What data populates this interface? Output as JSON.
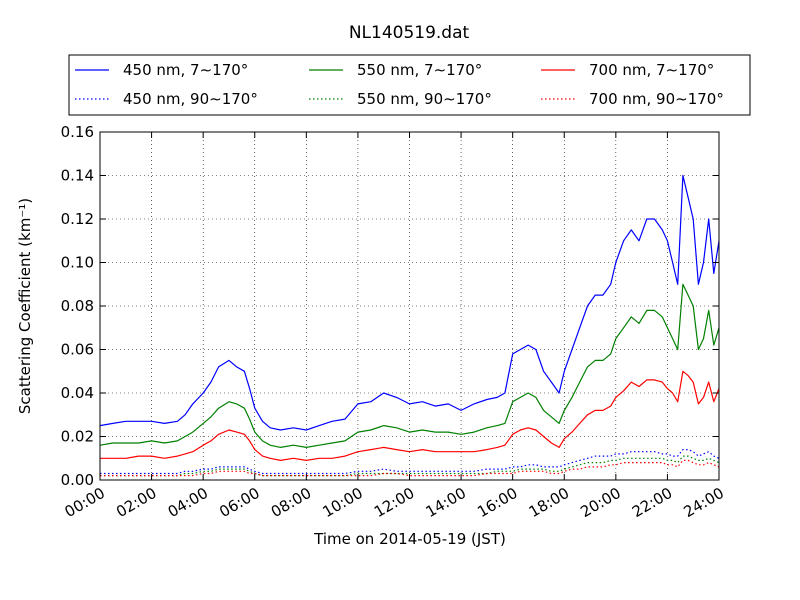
{
  "chart_data": {
    "type": "line",
    "title": "NL140519.dat",
    "xlabel": "Time on 2014-05-19 (JST)",
    "ylabel": "Scattering Coefficient (km⁻¹)",
    "xlim": [
      0,
      24
    ],
    "ylim": [
      0,
      0.16
    ],
    "grid": true,
    "legend_placement": "top",
    "x_ticks": [
      "00:00",
      "02:00",
      "04:00",
      "06:00",
      "08:00",
      "10:00",
      "12:00",
      "14:00",
      "16:00",
      "18:00",
      "20:00",
      "22:00",
      "24:00"
    ],
    "y_ticks": [
      "0.00",
      "0.02",
      "0.04",
      "0.06",
      "0.08",
      "0.10",
      "0.12",
      "0.14",
      "0.16"
    ],
    "x_hours": [
      0,
      0.5,
      1,
      1.5,
      2,
      2.5,
      3,
      3.3,
      3.6,
      4,
      4.3,
      4.6,
      5,
      5.3,
      5.6,
      5.8,
      6,
      6.3,
      6.6,
      7,
      7.5,
      8,
      8.5,
      9,
      9.5,
      10,
      10.5,
      11,
      11.5,
      12,
      12.5,
      13,
      13.5,
      14,
      14.5,
      15,
      15.4,
      15.7,
      16,
      16.3,
      16.6,
      16.9,
      17.2,
      17.5,
      17.8,
      18,
      18.3,
      18.6,
      18.9,
      19.2,
      19.5,
      19.8,
      20,
      20.3,
      20.6,
      20.9,
      21.2,
      21.5,
      21.8,
      22,
      22.2,
      22.4,
      22.6,
      22.8,
      23,
      23.2,
      23.4,
      23.6,
      23.8,
      24
    ],
    "series": [
      {
        "name": "450 nm, 7∼170°",
        "color": "#0000ff",
        "dash": "solid",
        "values": [
          0.025,
          0.026,
          0.027,
          0.027,
          0.027,
          0.026,
          0.027,
          0.03,
          0.035,
          0.04,
          0.045,
          0.052,
          0.055,
          0.052,
          0.05,
          0.042,
          0.033,
          0.027,
          0.024,
          0.023,
          0.024,
          0.023,
          0.025,
          0.027,
          0.028,
          0.035,
          0.036,
          0.04,
          0.038,
          0.035,
          0.036,
          0.034,
          0.035,
          0.032,
          0.035,
          0.037,
          0.038,
          0.04,
          0.058,
          0.06,
          0.062,
          0.06,
          0.05,
          0.045,
          0.04,
          0.05,
          0.06,
          0.07,
          0.08,
          0.085,
          0.085,
          0.09,
          0.1,
          0.11,
          0.115,
          0.11,
          0.12,
          0.12,
          0.115,
          0.11,
          0.1,
          0.09,
          0.14,
          0.13,
          0.12,
          0.09,
          0.1,
          0.12,
          0.095,
          0.11
        ]
      },
      {
        "name": "450 nm, 90∼170°",
        "color": "#0000ff",
        "dash": "dotted",
        "values": [
          0.003,
          0.003,
          0.003,
          0.003,
          0.003,
          0.003,
          0.003,
          0.004,
          0.004,
          0.005,
          0.005,
          0.006,
          0.006,
          0.006,
          0.006,
          0.005,
          0.004,
          0.003,
          0.003,
          0.003,
          0.003,
          0.003,
          0.003,
          0.003,
          0.003,
          0.004,
          0.004,
          0.005,
          0.004,
          0.004,
          0.004,
          0.004,
          0.004,
          0.004,
          0.004,
          0.005,
          0.005,
          0.005,
          0.006,
          0.006,
          0.007,
          0.007,
          0.006,
          0.006,
          0.006,
          0.007,
          0.008,
          0.009,
          0.01,
          0.011,
          0.011,
          0.011,
          0.012,
          0.012,
          0.013,
          0.013,
          0.013,
          0.013,
          0.012,
          0.012,
          0.011,
          0.011,
          0.014,
          0.014,
          0.013,
          0.011,
          0.012,
          0.013,
          0.011,
          0.01
        ]
      },
      {
        "name": "550 nm, 7∼170°",
        "color": "#008000",
        "dash": "solid",
        "values": [
          0.016,
          0.017,
          0.017,
          0.017,
          0.018,
          0.017,
          0.018,
          0.02,
          0.022,
          0.026,
          0.029,
          0.033,
          0.036,
          0.035,
          0.033,
          0.028,
          0.022,
          0.018,
          0.016,
          0.015,
          0.016,
          0.015,
          0.016,
          0.017,
          0.018,
          0.022,
          0.023,
          0.025,
          0.024,
          0.022,
          0.023,
          0.022,
          0.022,
          0.021,
          0.022,
          0.024,
          0.025,
          0.026,
          0.036,
          0.038,
          0.04,
          0.038,
          0.032,
          0.029,
          0.026,
          0.032,
          0.038,
          0.045,
          0.052,
          0.055,
          0.055,
          0.058,
          0.065,
          0.07,
          0.075,
          0.072,
          0.078,
          0.078,
          0.075,
          0.07,
          0.065,
          0.06,
          0.09,
          0.085,
          0.08,
          0.06,
          0.065,
          0.078,
          0.062,
          0.07
        ]
      },
      {
        "name": "550 nm, 90∼170°",
        "color": "#008000",
        "dash": "dotted",
        "values": [
          0.002,
          0.002,
          0.002,
          0.002,
          0.002,
          0.002,
          0.002,
          0.003,
          0.003,
          0.004,
          0.004,
          0.005,
          0.005,
          0.005,
          0.005,
          0.004,
          0.003,
          0.002,
          0.002,
          0.002,
          0.002,
          0.002,
          0.002,
          0.002,
          0.002,
          0.003,
          0.003,
          0.003,
          0.003,
          0.003,
          0.003,
          0.003,
          0.003,
          0.003,
          0.003,
          0.003,
          0.004,
          0.004,
          0.004,
          0.005,
          0.005,
          0.005,
          0.005,
          0.004,
          0.004,
          0.005,
          0.006,
          0.007,
          0.008,
          0.008,
          0.008,
          0.009,
          0.009,
          0.01,
          0.01,
          0.01,
          0.01,
          0.01,
          0.01,
          0.009,
          0.009,
          0.008,
          0.011,
          0.011,
          0.01,
          0.009,
          0.009,
          0.01,
          0.009,
          0.008
        ]
      },
      {
        "name": "700 nm, 7∼170°",
        "color": "#ff0000",
        "dash": "solid",
        "values": [
          0.01,
          0.01,
          0.01,
          0.011,
          0.011,
          0.01,
          0.011,
          0.012,
          0.013,
          0.016,
          0.018,
          0.021,
          0.023,
          0.022,
          0.021,
          0.018,
          0.014,
          0.011,
          0.01,
          0.009,
          0.01,
          0.009,
          0.01,
          0.01,
          0.011,
          0.013,
          0.014,
          0.015,
          0.014,
          0.013,
          0.014,
          0.013,
          0.013,
          0.013,
          0.013,
          0.014,
          0.015,
          0.016,
          0.021,
          0.023,
          0.024,
          0.023,
          0.02,
          0.017,
          0.015,
          0.019,
          0.022,
          0.026,
          0.03,
          0.032,
          0.032,
          0.034,
          0.038,
          0.041,
          0.045,
          0.043,
          0.046,
          0.046,
          0.045,
          0.042,
          0.04,
          0.036,
          0.05,
          0.048,
          0.045,
          0.035,
          0.038,
          0.045,
          0.036,
          0.042
        ]
      },
      {
        "name": "700 nm, 90∼170°",
        "color": "#ff0000",
        "dash": "dotted",
        "values": [
          0.002,
          0.002,
          0.002,
          0.002,
          0.002,
          0.002,
          0.002,
          0.002,
          0.002,
          0.003,
          0.003,
          0.004,
          0.004,
          0.004,
          0.004,
          0.003,
          0.003,
          0.002,
          0.002,
          0.002,
          0.002,
          0.002,
          0.002,
          0.002,
          0.002,
          0.002,
          0.002,
          0.003,
          0.003,
          0.002,
          0.002,
          0.002,
          0.002,
          0.002,
          0.002,
          0.003,
          0.003,
          0.003,
          0.003,
          0.004,
          0.004,
          0.004,
          0.004,
          0.003,
          0.003,
          0.004,
          0.005,
          0.005,
          0.006,
          0.006,
          0.006,
          0.007,
          0.007,
          0.008,
          0.008,
          0.008,
          0.008,
          0.008,
          0.008,
          0.007,
          0.007,
          0.006,
          0.009,
          0.009,
          0.008,
          0.007,
          0.007,
          0.008,
          0.007,
          0.006
        ]
      }
    ]
  }
}
